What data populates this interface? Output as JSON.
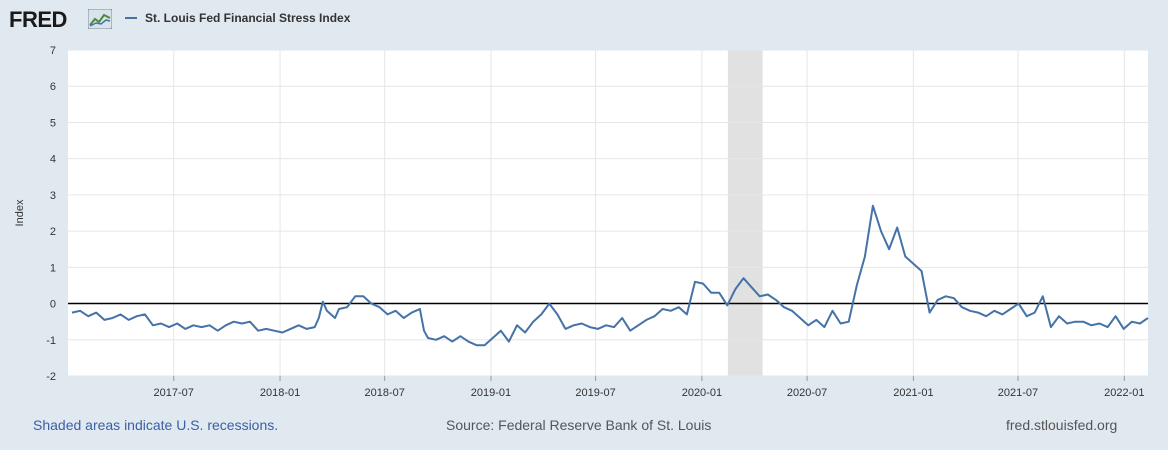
{
  "header": {
    "logo_text": "FRED",
    "legend_label": "St. Louis Fed Financial Stress Index",
    "series_color": "#4572a7"
  },
  "footer": {
    "recession_note": "Shaded areas indicate U.S. recessions.",
    "source": "Source: Federal Reserve Bank of St. Louis",
    "site": "fred.stlouisfed.org"
  },
  "chart_data": {
    "type": "line",
    "title": "",
    "ylabel": "Index",
    "xlabel": "",
    "ylim": [
      -2,
      7
    ],
    "xlim": [
      "2016-12-30",
      "2022-02-11"
    ],
    "yticks": [
      -2,
      -1,
      0,
      1,
      2,
      3,
      4,
      5,
      6,
      7
    ],
    "xticks": [
      {
        "date": "2017-07-01",
        "label": "2017-07"
      },
      {
        "date": "2018-01-01",
        "label": "2018-01"
      },
      {
        "date": "2018-07-01",
        "label": "2018-07"
      },
      {
        "date": "2019-01-01",
        "label": "2019-01"
      },
      {
        "date": "2019-07-01",
        "label": "2019-07"
      },
      {
        "date": "2020-01-01",
        "label": "2020-01"
      },
      {
        "date": "2020-07-01",
        "label": "2020-07"
      },
      {
        "date": "2021-01-01",
        "label": "2021-01"
      },
      {
        "date": "2021-07-01",
        "label": "2021-07"
      },
      {
        "date": "2022-01-01",
        "label": "2022-01"
      }
    ],
    "grid": true,
    "reference_line": 0,
    "recession": {
      "start": "2020-02-15",
      "end": "2020-04-15"
    },
    "series": [
      {
        "name": "St. Louis Fed Financial Stress Index",
        "points": [
          [
            "2017-01-06",
            -0.25
          ],
          [
            "2017-01-20",
            -0.2
          ],
          [
            "2017-02-03",
            -0.35
          ],
          [
            "2017-02-17",
            -0.25
          ],
          [
            "2017-03-03",
            -0.45
          ],
          [
            "2017-03-17",
            -0.4
          ],
          [
            "2017-03-31",
            -0.3
          ],
          [
            "2017-04-14",
            -0.45
          ],
          [
            "2017-04-28",
            -0.35
          ],
          [
            "2017-05-12",
            -0.3
          ],
          [
            "2017-05-26",
            -0.6
          ],
          [
            "2017-06-09",
            -0.55
          ],
          [
            "2017-06-23",
            -0.65
          ],
          [
            "2017-07-07",
            -0.55
          ],
          [
            "2017-07-21",
            -0.7
          ],
          [
            "2017-08-04",
            -0.6
          ],
          [
            "2017-08-18",
            -0.65
          ],
          [
            "2017-09-01",
            -0.6
          ],
          [
            "2017-09-15",
            -0.75
          ],
          [
            "2017-09-29",
            -0.6
          ],
          [
            "2017-10-13",
            -0.5
          ],
          [
            "2017-10-27",
            -0.55
          ],
          [
            "2017-11-10",
            -0.5
          ],
          [
            "2017-11-24",
            -0.75
          ],
          [
            "2017-12-08",
            -0.7
          ],
          [
            "2017-12-22",
            -0.75
          ],
          [
            "2018-01-05",
            -0.8
          ],
          [
            "2018-01-19",
            -0.7
          ],
          [
            "2018-02-02",
            -0.6
          ],
          [
            "2018-02-16",
            -0.7
          ],
          [
            "2018-03-02",
            -0.65
          ],
          [
            "2018-03-09",
            -0.4
          ],
          [
            "2018-03-16",
            0.05
          ],
          [
            "2018-03-23",
            -0.2
          ],
          [
            "2018-04-06",
            -0.4
          ],
          [
            "2018-04-13",
            -0.15
          ],
          [
            "2018-04-27",
            -0.1
          ],
          [
            "2018-05-11",
            0.2
          ],
          [
            "2018-05-25",
            0.2
          ],
          [
            "2018-06-08",
            0.0
          ],
          [
            "2018-06-22",
            -0.1
          ],
          [
            "2018-07-06",
            -0.3
          ],
          [
            "2018-07-20",
            -0.2
          ],
          [
            "2018-08-03",
            -0.4
          ],
          [
            "2018-08-17",
            -0.25
          ],
          [
            "2018-08-31",
            -0.15
          ],
          [
            "2018-09-07",
            -0.75
          ],
          [
            "2018-09-14",
            -0.95
          ],
          [
            "2018-09-28",
            -1.0
          ],
          [
            "2018-10-12",
            -0.9
          ],
          [
            "2018-10-26",
            -1.05
          ],
          [
            "2018-11-09",
            -0.9
          ],
          [
            "2018-11-23",
            -1.05
          ],
          [
            "2018-12-07",
            -1.15
          ],
          [
            "2018-12-21",
            -1.15
          ],
          [
            "2019-01-04",
            -0.95
          ],
          [
            "2019-01-18",
            -0.75
          ],
          [
            "2019-02-01",
            -1.05
          ],
          [
            "2019-02-15",
            -0.6
          ],
          [
            "2019-03-01",
            -0.8
          ],
          [
            "2019-03-15",
            -0.5
          ],
          [
            "2019-03-29",
            -0.3
          ],
          [
            "2019-04-12",
            0.0
          ],
          [
            "2019-04-26",
            -0.3
          ],
          [
            "2019-05-10",
            -0.7
          ],
          [
            "2019-05-24",
            -0.6
          ],
          [
            "2019-06-07",
            -0.55
          ],
          [
            "2019-06-21",
            -0.65
          ],
          [
            "2019-07-05",
            -0.7
          ],
          [
            "2019-07-19",
            -0.6
          ],
          [
            "2019-08-02",
            -0.65
          ],
          [
            "2019-08-16",
            -0.4
          ],
          [
            "2019-08-30",
            -0.75
          ],
          [
            "2019-09-13",
            -0.6
          ],
          [
            "2019-09-27",
            -0.45
          ],
          [
            "2019-10-11",
            -0.35
          ],
          [
            "2019-10-25",
            -0.15
          ],
          [
            "2019-11-08",
            -0.2
          ],
          [
            "2019-11-22",
            -0.1
          ],
          [
            "2019-12-06",
            -0.3
          ],
          [
            "2019-12-20",
            0.6
          ],
          [
            "2020-01-03",
            0.55
          ],
          [
            "2020-01-17",
            0.3
          ],
          [
            "2020-01-31",
            0.3
          ],
          [
            "2020-02-14",
            -0.05
          ],
          [
            "2020-02-28",
            0.4
          ],
          [
            "2020-03-13",
            0.7
          ],
          [
            "2020-03-27",
            0.45
          ],
          [
            "2020-04-10",
            0.2
          ],
          [
            "2020-04-24",
            0.25
          ],
          [
            "2020-05-08",
            0.1
          ],
          [
            "2020-05-22",
            -0.1
          ],
          [
            "2020-06-05",
            -0.2
          ],
          [
            "2020-06-19",
            -0.4
          ],
          [
            "2020-07-03",
            -0.6
          ],
          [
            "2020-07-17",
            -0.45
          ],
          [
            "2020-07-31",
            -0.65
          ],
          [
            "2020-08-14",
            -0.2
          ],
          [
            "2020-08-28",
            -0.55
          ],
          [
            "2020-09-11",
            -0.5
          ],
          [
            "2020-09-25",
            0.5
          ],
          [
            "2020-10-09",
            1.3
          ],
          [
            "2020-10-23",
            2.7
          ],
          [
            "2020-11-06",
            2.0
          ],
          [
            "2020-11-20",
            1.5
          ],
          [
            "2020-12-04",
            2.1
          ],
          [
            "2020-12-18",
            1.3
          ],
          [
            "2021-01-01",
            1.1
          ],
          [
            "2021-01-15",
            0.9
          ],
          [
            "2021-01-29",
            -0.25
          ],
          [
            "2021-02-12",
            0.1
          ],
          [
            "2021-02-26",
            0.2
          ],
          [
            "2021-03-12",
            0.15
          ],
          [
            "2021-03-26",
            -0.1
          ],
          [
            "2021-04-09",
            -0.2
          ],
          [
            "2021-04-23",
            -0.25
          ],
          [
            "2021-05-07",
            -0.35
          ],
          [
            "2021-05-21",
            -0.2
          ],
          [
            "2021-06-04",
            -0.3
          ],
          [
            "2021-06-18",
            -0.15
          ],
          [
            "2021-07-02",
            0.0
          ],
          [
            "2021-07-16",
            -0.35
          ],
          [
            "2021-07-30",
            -0.25
          ],
          [
            "2021-08-13",
            0.2
          ],
          [
            "2021-08-27",
            -0.65
          ],
          [
            "2021-09-10",
            -0.35
          ],
          [
            "2021-09-24",
            -0.55
          ],
          [
            "2021-10-08",
            -0.5
          ],
          [
            "2021-10-22",
            -0.5
          ],
          [
            "2021-11-05",
            -0.6
          ],
          [
            "2021-11-19",
            -0.55
          ],
          [
            "2021-12-03",
            -0.65
          ],
          [
            "2021-12-17",
            -0.35
          ],
          [
            "2021-12-31",
            -0.7
          ],
          [
            "2022-01-14",
            -0.5
          ],
          [
            "2022-01-28",
            -0.55
          ],
          [
            "2022-02-11",
            -0.4
          ]
        ]
      }
    ]
  }
}
